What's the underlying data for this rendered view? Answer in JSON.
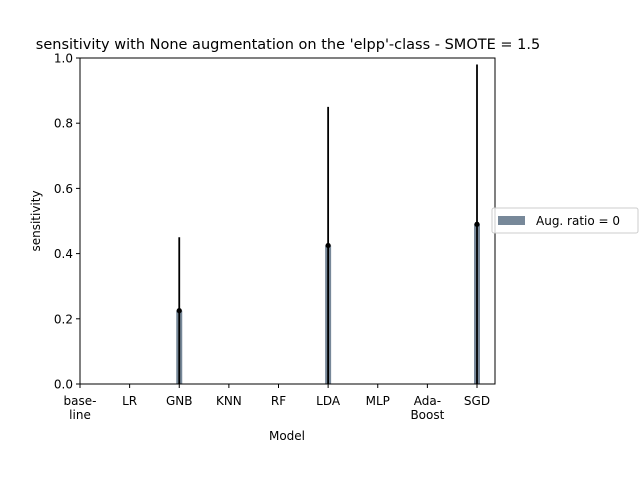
{
  "chart_data": {
    "type": "bar",
    "title": "sensitivity with None augmentation on the 'elpp'-class - SMOTE = 1.5",
    "xlabel": "Model",
    "ylabel": "sensitivity",
    "ylim": [
      0,
      1.0
    ],
    "yticks": [
      "0.0",
      "0.2",
      "0.4",
      "0.6",
      "0.8",
      "1.0"
    ],
    "categories": [
      [
        "base-",
        "line"
      ],
      [
        "LR"
      ],
      [
        "GNB"
      ],
      [
        "KNN"
      ],
      [
        "RF"
      ],
      [
        "LDA"
      ],
      [
        "MLP"
      ],
      [
        "Ada-",
        "Boost"
      ],
      [
        "SGD"
      ]
    ],
    "series": [
      {
        "name": "Aug. ratio = 0",
        "color": "#778899",
        "values": [
          0,
          0,
          0.225,
          0,
          0,
          0.425,
          0,
          0,
          0.49
        ],
        "error": [
          0,
          0,
          0.225,
          0,
          0,
          0.425,
          0,
          0,
          0.49
        ]
      }
    ],
    "error_color": "#000000",
    "grid": false,
    "legend_placement": "right, outside plot"
  }
}
